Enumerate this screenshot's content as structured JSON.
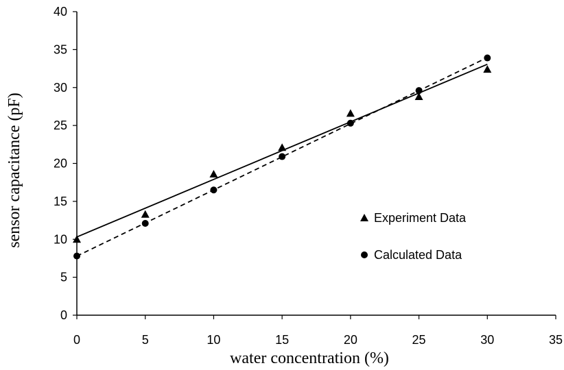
{
  "chart_data": {
    "type": "scatter",
    "title": "",
    "xlabel": "water concentration (%)",
    "ylabel": "sensor capacitance (pF)",
    "xlim": [
      0,
      35
    ],
    "ylim": [
      0,
      40
    ],
    "x_ticks": [
      0,
      5,
      10,
      15,
      20,
      25,
      30,
      35
    ],
    "y_ticks": [
      0,
      5,
      10,
      15,
      20,
      25,
      30,
      35,
      40
    ],
    "grid": false,
    "legend_position": "right",
    "series": [
      {
        "name": "Experiment Data",
        "marker": "triangle",
        "trendline": "solid",
        "x": [
          0,
          5,
          10,
          15,
          20,
          25,
          30
        ],
        "y": [
          10.0,
          13.3,
          18.6,
          22.1,
          26.6,
          28.8,
          32.4
        ]
      },
      {
        "name": "Calculated Data",
        "marker": "circle",
        "trendline": "dashed",
        "x": [
          0,
          5,
          10,
          15,
          20,
          25,
          30
        ],
        "y": [
          7.8,
          12.1,
          16.5,
          20.9,
          25.3,
          29.6,
          33.9
        ]
      }
    ],
    "colors": {
      "marker": "#000000",
      "line": "#000000"
    }
  }
}
